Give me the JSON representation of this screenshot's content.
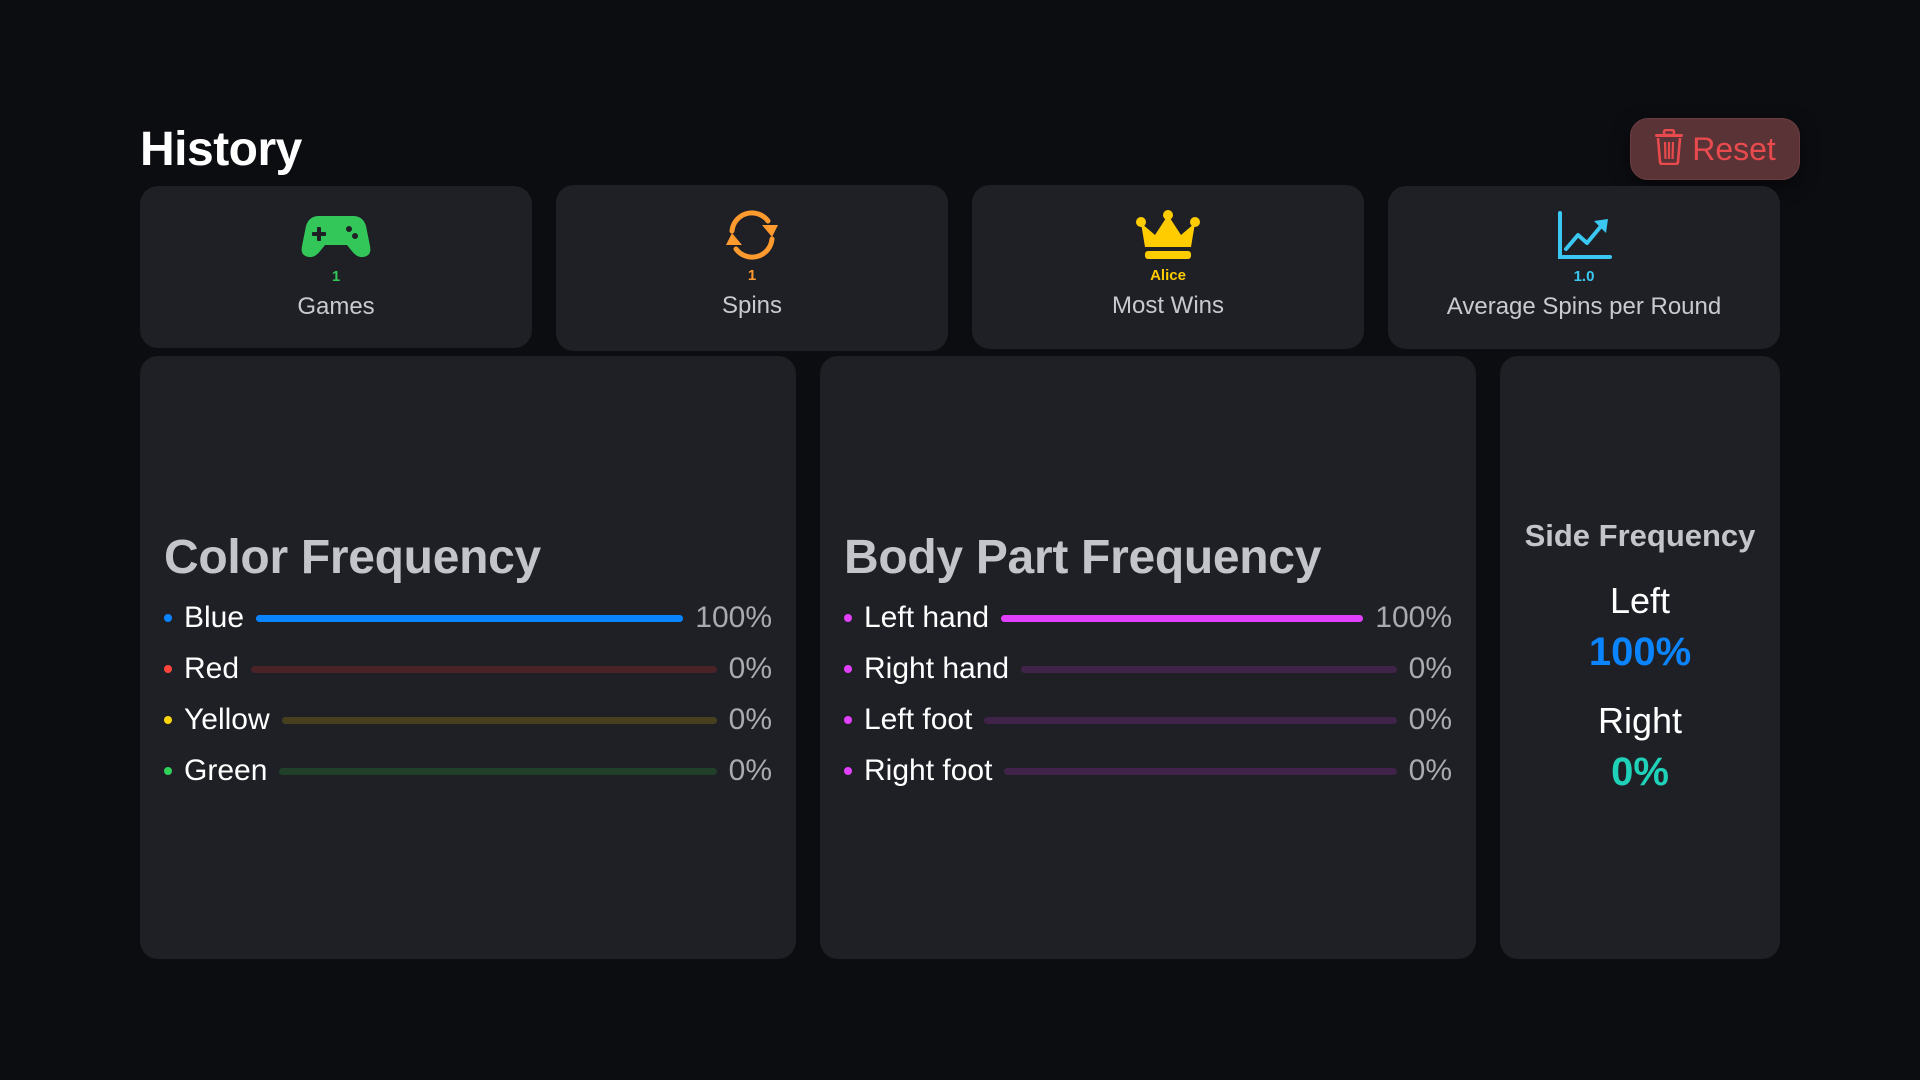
{
  "page": {
    "title": "History"
  },
  "reset": {
    "label": "Reset",
    "icon": "trash-icon",
    "color": "#e84a4d"
  },
  "stats": [
    {
      "value": "1",
      "label": "Games",
      "icon": "gamepad-icon",
      "color": "#33c759"
    },
    {
      "value": "1",
      "label": "Spins",
      "icon": "refresh-icon",
      "color": "#ff9a2e"
    },
    {
      "value": "Alice",
      "label": "Most Wins",
      "icon": "crown-icon",
      "color": "#ffcc00"
    },
    {
      "value": "1.0",
      "label": "Average Spins per Round",
      "icon": "chart-line-icon",
      "color": "#3ac8f2"
    }
  ],
  "color_frequency": {
    "title": "Color Frequency",
    "items": [
      {
        "name": "Blue",
        "percent": 100,
        "label": "100%",
        "color": "#0a84ff",
        "track": "#0a84ff"
      },
      {
        "name": "Red",
        "percent": 0,
        "label": "0%",
        "color": "#ff453a",
        "track": "#4a2327"
      },
      {
        "name": "Yellow",
        "percent": 0,
        "label": "0%",
        "color": "#ffd60a",
        "track": "#47401f"
      },
      {
        "name": "Green",
        "percent": 0,
        "label": "0%",
        "color": "#30d158",
        "track": "#20402a"
      }
    ]
  },
  "body_part_frequency": {
    "title": "Body Part Frequency",
    "items": [
      {
        "name": "Left hand",
        "percent": 100,
        "label": "100%",
        "color": "#e040fb",
        "track": "#e040fb"
      },
      {
        "name": "Right hand",
        "percent": 0,
        "label": "0%",
        "color": "#e040fb",
        "track": "#402348"
      },
      {
        "name": "Left foot",
        "percent": 0,
        "label": "0%",
        "color": "#e040fb",
        "track": "#402348"
      },
      {
        "name": "Right foot",
        "percent": 0,
        "label": "0%",
        "color": "#e040fb",
        "track": "#402348"
      }
    ]
  },
  "side_frequency": {
    "title": "Side Frequency",
    "items": [
      {
        "name": "Left",
        "label": "100%",
        "color": "#0a84ff"
      },
      {
        "name": "Right",
        "label": "0%",
        "color": "#1ed1b8"
      }
    ]
  }
}
